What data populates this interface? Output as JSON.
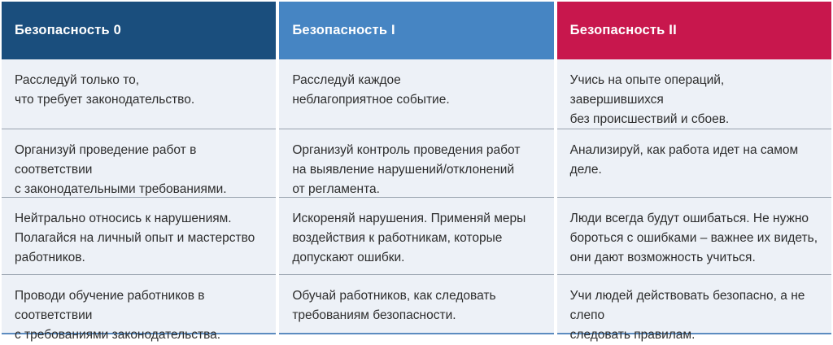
{
  "colors": {
    "header_level0": "#1a4e7d",
    "header_level1": "#4685c3",
    "header_level2": "#c8174d",
    "cell_background": "#edf1f7",
    "row_separator": "#98a2ae",
    "bottom_accent": "#5c8cc0",
    "body_text": "#2d2d2d",
    "header_text": "#ffffff"
  },
  "table": {
    "columns": [
      {
        "header": "Безопасность 0",
        "header_color": "#1a4e7d",
        "cells": [
          "Расследуй только то,\nчто требует законодательство.",
          "Организуй проведение работ в соответствии\nс законодательными требованиями.",
          "Нейтрально относись к нарушениям.\nПолагайся на личный опыт и мастерство\nработников.",
          "Проводи обучение работников в соответствии\nс требованиями законодательства."
        ]
      },
      {
        "header": "Безопасность I",
        "header_color": "#4685c3",
        "cells": [
          "Расследуй каждое\nнеблагоприятное событие.",
          "Организуй контроль проведения работ\nна выявление нарушений/отклонений\nот регламента.",
          "Искореняй нарушения. Применяй меры\nвоздействия к работникам, которые\nдопускают ошибки.",
          "Обучай работников, как следовать\nтребованиям безопасности."
        ]
      },
      {
        "header": "Безопасность II",
        "header_color": "#c8174d",
        "cells": [
          "Учись на опыте операций, завершившихся\nбез происшествий и сбоев.",
          "Анализируй, как работа идет на самом деле.",
          "Люди всегда будут ошибаться. Не нужно\nбороться с ошибками – важнее их видеть,\nони дают возможность учиться.",
          "Учи людей действовать безопасно, а не слепо\nследовать правилам."
        ]
      }
    ]
  }
}
